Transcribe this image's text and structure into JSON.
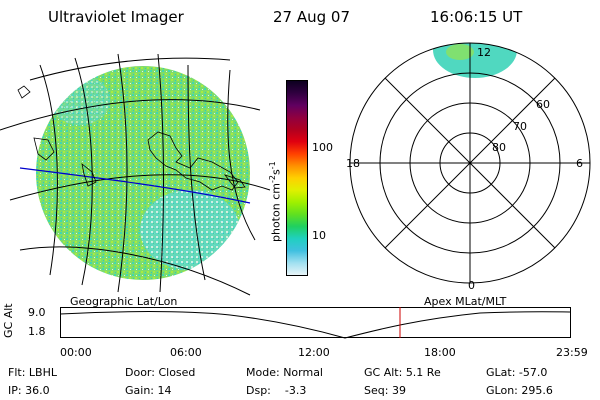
{
  "header": {
    "title": "Ultraviolet Imager",
    "date": "27 Aug 07",
    "time": "16:06:15 UT"
  },
  "colorbar": {
    "unit_label": "photon cm",
    "unit_sup1": "-2",
    "unit_mid": "s",
    "unit_sup2": "-1",
    "ticks": [
      "100",
      "10"
    ],
    "colors": [
      "#0d0020",
      "#300040",
      "#600060",
      "#900040",
      "#b00020",
      "#e00010",
      "#ff4000",
      "#ff9000",
      "#ffd000",
      "#e0f000",
      "#a0f000",
      "#60e020",
      "#20d060",
      "#20d0c0",
      "#40c0e0",
      "#a0e0f0",
      "#e8f4f8"
    ]
  },
  "polar": {
    "mlt_labels": {
      "top": "12",
      "left": "18",
      "right": "6",
      "bottom": "0"
    },
    "lat_labels": [
      "60",
      "70",
      "80"
    ]
  },
  "panels": {
    "geo_label": "Geographic Lat/Lon",
    "apex_label": "Apex  MLat/MLT"
  },
  "timeline": {
    "axis_label": "GC Alt",
    "y_ticks": [
      "9.0",
      "1.8"
    ],
    "x_ticks": [
      "00:00",
      "06:00",
      "12:00",
      "18:00",
      "23:59"
    ],
    "current_marker_color": "#cc0000"
  },
  "info": {
    "row1": [
      {
        "label": "Flt:",
        "value": "LBHL"
      },
      {
        "label": "Door:",
        "value": "Closed"
      },
      {
        "label": "Mode:",
        "value": "Normal"
      },
      {
        "label": "GC Alt:",
        "value": "5.1 Re"
      },
      {
        "label": "GLat:",
        "value": "-57.0"
      }
    ],
    "row2": [
      {
        "label": "IP:",
        "value": "36.0"
      },
      {
        "label": "Gain:",
        "value": "14"
      },
      {
        "label": "Dsp:",
        "value": "   -3.3"
      },
      {
        "label": "Seq:",
        "value": "39"
      },
      {
        "label": "GLon:",
        "value": "295.6"
      }
    ]
  }
}
